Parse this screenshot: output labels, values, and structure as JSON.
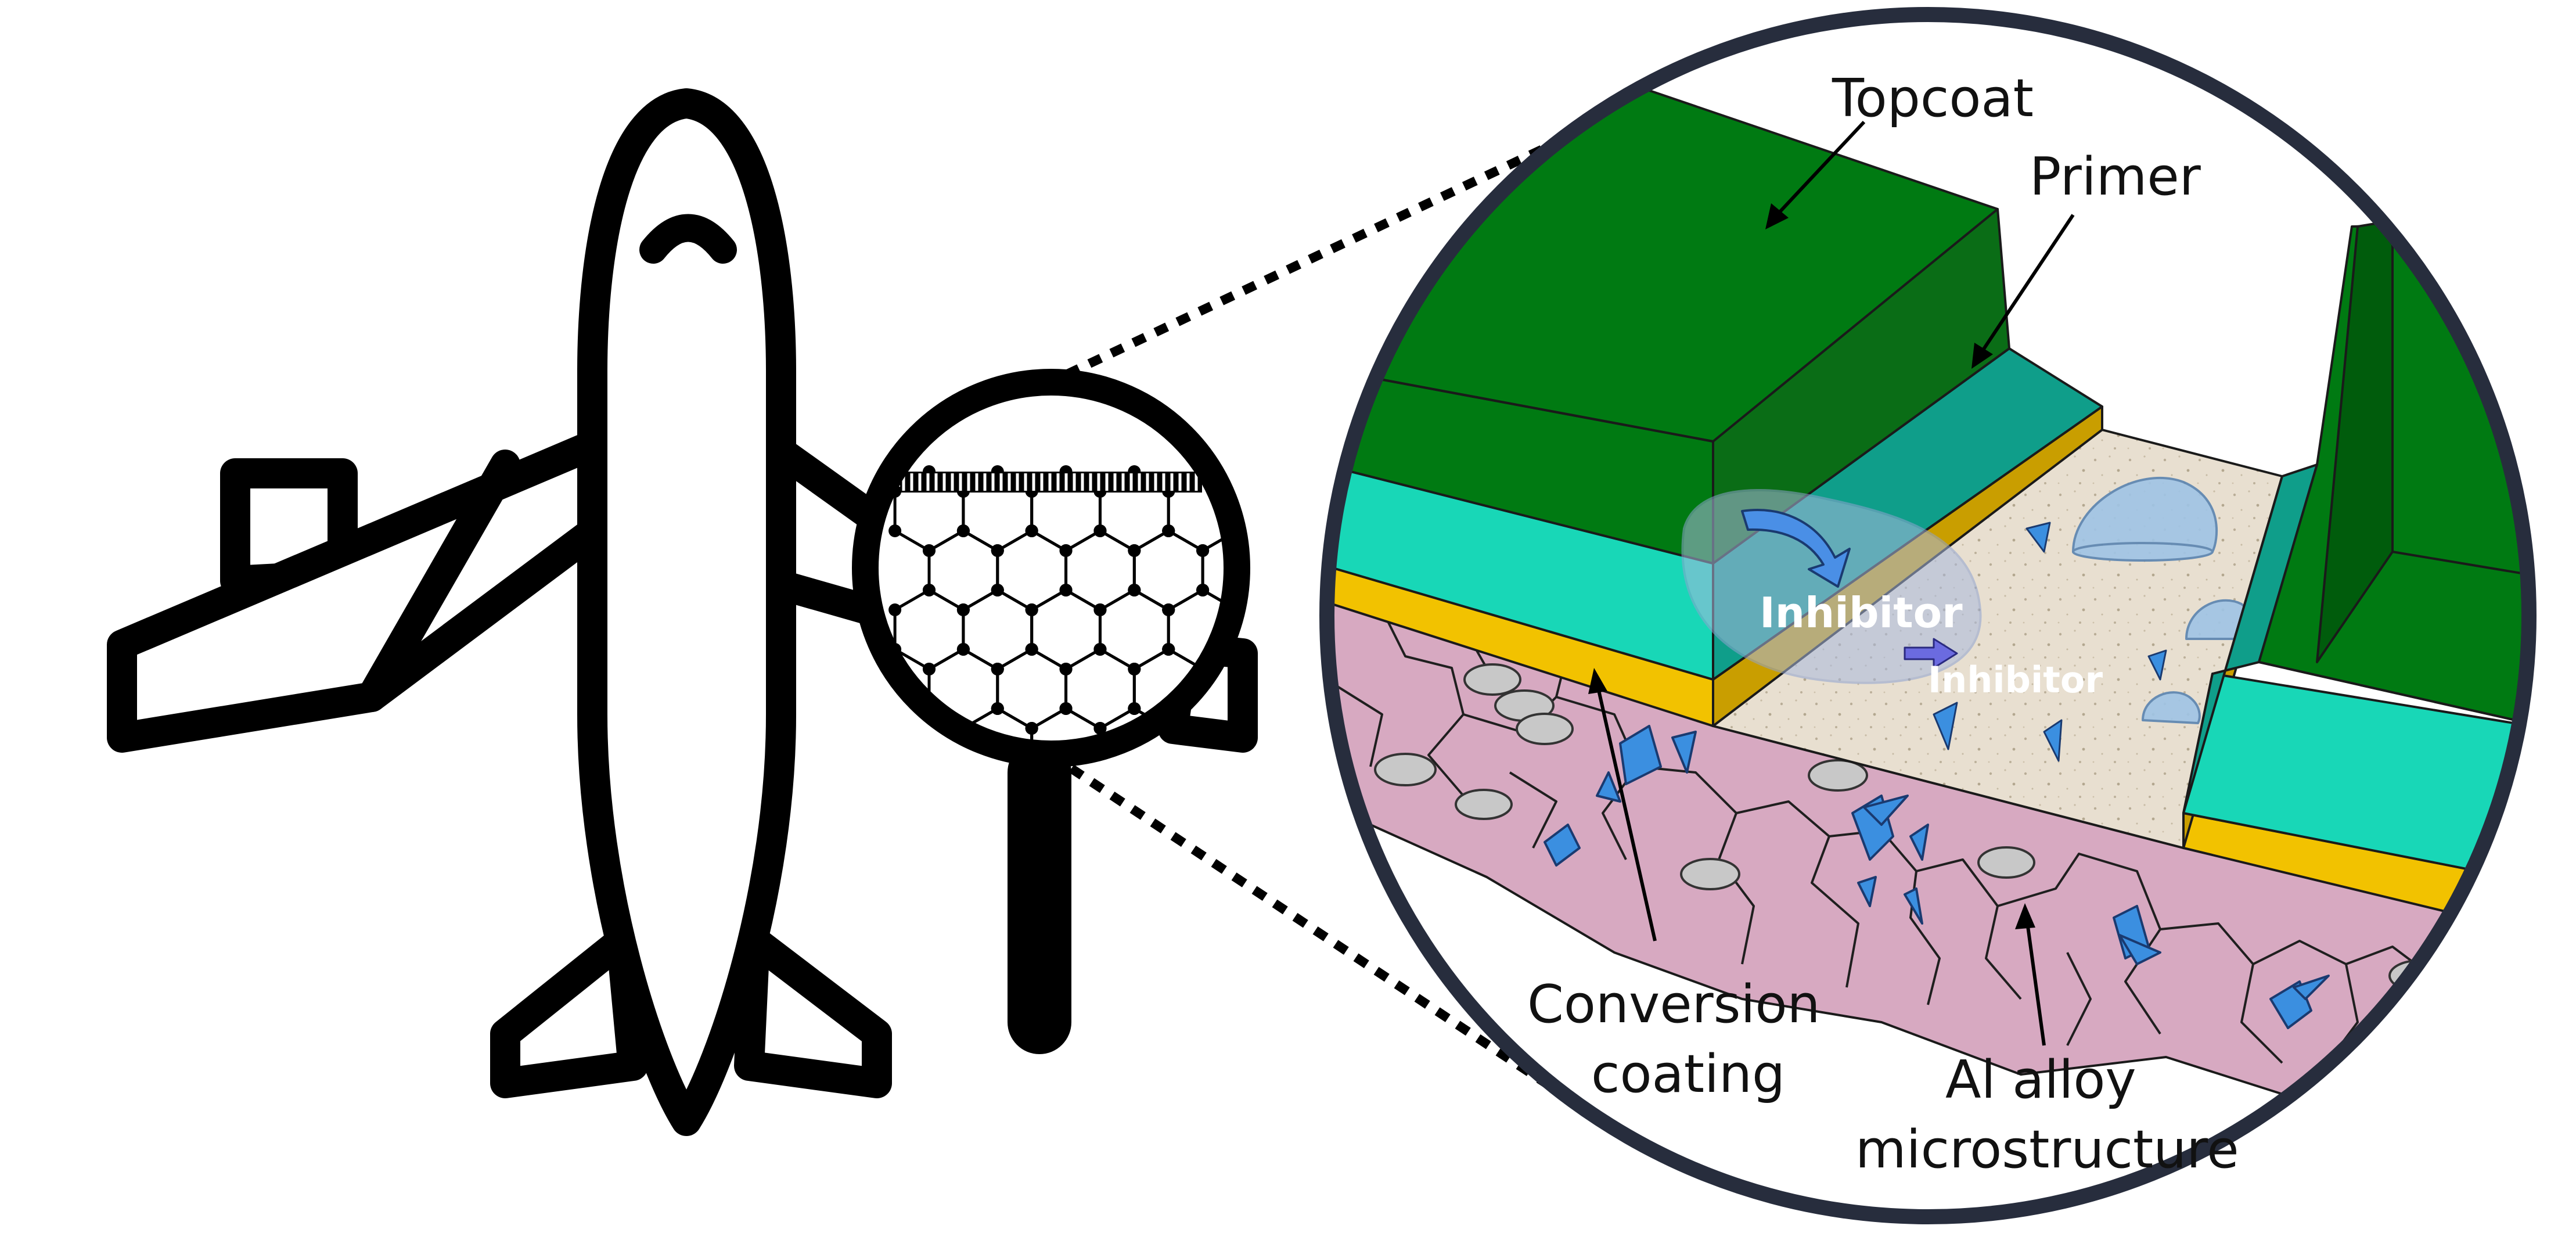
{
  "labels": {
    "topcoat": "Topcoat",
    "primer": "Primer",
    "inhibitor_1": "Inhibitor",
    "inhibitor_2": "Inhibitor",
    "conversion_line1": "Conversion",
    "conversion_line2": "coating",
    "alloy_line1": "Al alloy",
    "alloy_line2": "microstructure"
  },
  "icons": [
    "airplane-icon",
    "magnifying-glass-icon",
    "hexagonal-lattice-icon",
    "zoom-callout-circle"
  ],
  "colors": {
    "topcoat": "#007a12",
    "topcoat_dark": "#005c0c",
    "primer": "#18d7b7",
    "conversion": "#f2c200",
    "substrate_surface": "#e8dfd0",
    "alloy": "#d7a9c1",
    "particles": "#3b8fe0",
    "droplets": "#9fc4e6",
    "outline": "#1a1a1a",
    "callout_border": "#272d3d"
  }
}
